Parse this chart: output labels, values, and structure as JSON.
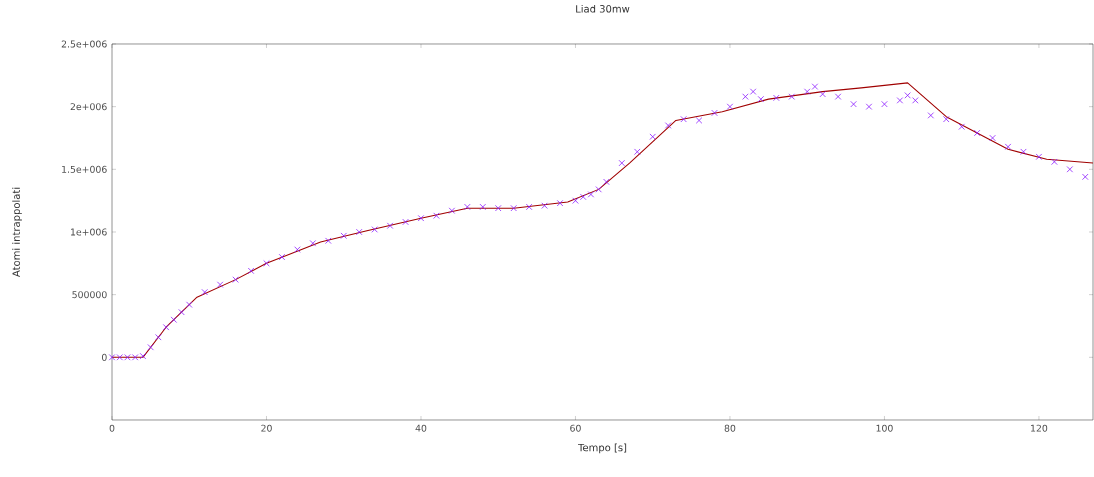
{
  "chart_data": {
    "type": "scatter",
    "title": "Liad 30mw",
    "xlabel": "Tempo [s]",
    "ylabel": "Atomi intrappolati",
    "xlim": [
      0,
      127
    ],
    "ylim": [
      -500000,
      2500000
    ],
    "xticks": [
      0,
      20,
      40,
      60,
      80,
      100,
      120
    ],
    "yticks": [
      {
        "value": 0,
        "label": "0"
      },
      {
        "value": 500000,
        "label": "500000"
      },
      {
        "value": 1000000,
        "label": "1e+006"
      },
      {
        "value": 1500000,
        "label": "1.5e+006"
      },
      {
        "value": 2000000,
        "label": "2e+006"
      },
      {
        "value": 2500000,
        "label": "2.5e+006"
      }
    ],
    "series": [
      {
        "type": "line",
        "color": "#a00000",
        "marker": "none",
        "line_style": "solid",
        "x": [
          0,
          4,
          7,
          11,
          16,
          20,
          27,
          33,
          40,
          46,
          52,
          59,
          63,
          67,
          73,
          79,
          85,
          92,
          97,
          103,
          108,
          112,
          116,
          121,
          127
        ],
        "values": [
          0,
          0,
          240000,
          480000,
          620000,
          750000,
          920000,
          1010000,
          1110000,
          1190000,
          1190000,
          1240000,
          1340000,
          1550000,
          1890000,
          1960000,
          2060000,
          2120000,
          2150000,
          2190000,
          1920000,
          1790000,
          1660000,
          1580000,
          1550000
        ]
      },
      {
        "color": "#8b1cff",
        "marker": "cross",
        "x": [
          0,
          1,
          2,
          3,
          4,
          5,
          6,
          7,
          8,
          9,
          10,
          12,
          14,
          16,
          18,
          20,
          22,
          24,
          26,
          28,
          30,
          32,
          34,
          36,
          38,
          40,
          42,
          44,
          46,
          48,
          50,
          52,
          54,
          56,
          58,
          60,
          61,
          62,
          63,
          64,
          66,
          68,
          70,
          72,
          74,
          76,
          78,
          80,
          82,
          83,
          84,
          86,
          88,
          90,
          91,
          92,
          94,
          96,
          98,
          100,
          102,
          103,
          104,
          106,
          108,
          110,
          112,
          114,
          116,
          118,
          120,
          122,
          124,
          126
        ],
        "values": [
          0,
          0,
          0,
          0,
          10000,
          80000,
          160000,
          240000,
          300000,
          360000,
          420000,
          520000,
          580000,
          620000,
          690000,
          750000,
          800000,
          860000,
          910000,
          930000,
          970000,
          1000000,
          1020000,
          1050000,
          1080000,
          1110000,
          1130000,
          1170000,
          1200000,
          1200000,
          1190000,
          1190000,
          1200000,
          1210000,
          1230000,
          1250000,
          1280000,
          1300000,
          1340000,
          1400000,
          1550000,
          1640000,
          1760000,
          1850000,
          1900000,
          1890000,
          1950000,
          2000000,
          2080000,
          2120000,
          2060000,
          2070000,
          2080000,
          2120000,
          2160000,
          2100000,
          2080000,
          2020000,
          2000000,
          2020000,
          2050000,
          2090000,
          2050000,
          1930000,
          1900000,
          1840000,
          1790000,
          1750000,
          1680000,
          1640000,
          1600000,
          1560000,
          1500000,
          1440000
        ]
      }
    ]
  }
}
